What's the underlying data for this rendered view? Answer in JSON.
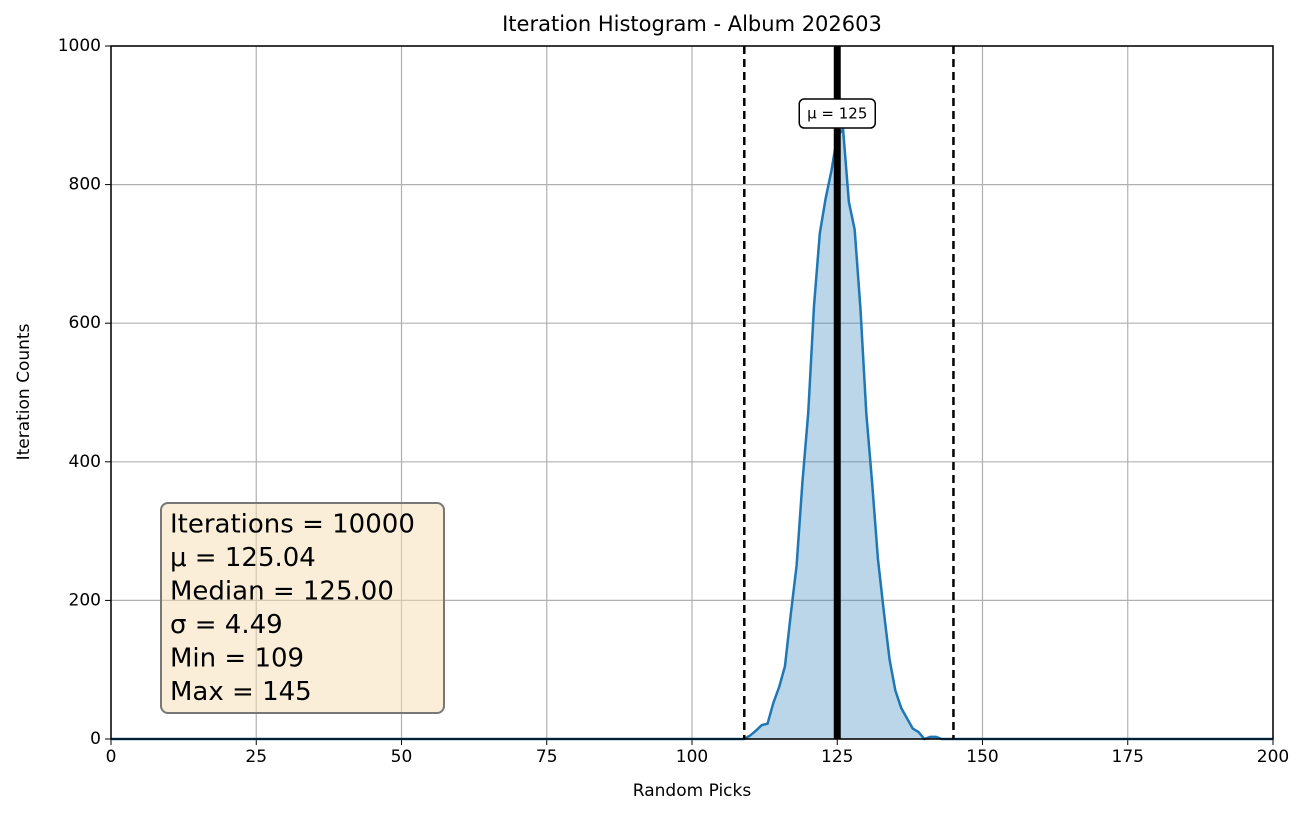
{
  "chart_data": {
    "type": "line",
    "title": "Iteration Histogram - Album 202603",
    "xlabel": "Random Picks",
    "ylabel": "Iteration Counts",
    "x": [
      0,
      109,
      110,
      111,
      112,
      113,
      114,
      115,
      116,
      117,
      118,
      119,
      120,
      121,
      122,
      123,
      124,
      125,
      126,
      127,
      128,
      129,
      130,
      131,
      132,
      133,
      134,
      135,
      136,
      137,
      138,
      139,
      140,
      141,
      142,
      143,
      144,
      145,
      200
    ],
    "values": [
      0,
      0,
      5,
      12,
      20,
      22,
      52,
      75,
      105,
      180,
      250,
      370,
      470,
      625,
      730,
      780,
      820,
      870,
      880,
      775,
      735,
      620,
      470,
      370,
      260,
      185,
      115,
      70,
      45,
      30,
      15,
      10,
      0,
      3,
      3,
      0,
      0,
      0,
      0
    ],
    "color": "#1f77b4",
    "xlim": [
      0,
      200
    ],
    "xticks": [
      0,
      25,
      50,
      75,
      100,
      125,
      150,
      175,
      200
    ],
    "ylim": [
      0,
      1000
    ],
    "yticks": [
      0,
      200,
      400,
      600,
      800,
      1000
    ],
    "grid": true,
    "vlines": [
      {
        "x": 125,
        "style": "solid"
      },
      {
        "x": 109,
        "style": "dashed"
      },
      {
        "x": 145,
        "style": "dashed"
      }
    ],
    "annotation": "μ = 125",
    "stats": [
      "Iterations = 10000",
      "μ = 125.04",
      "Median = 125.00",
      "σ = 4.49",
      "Min = 109",
      "Max = 145"
    ]
  }
}
